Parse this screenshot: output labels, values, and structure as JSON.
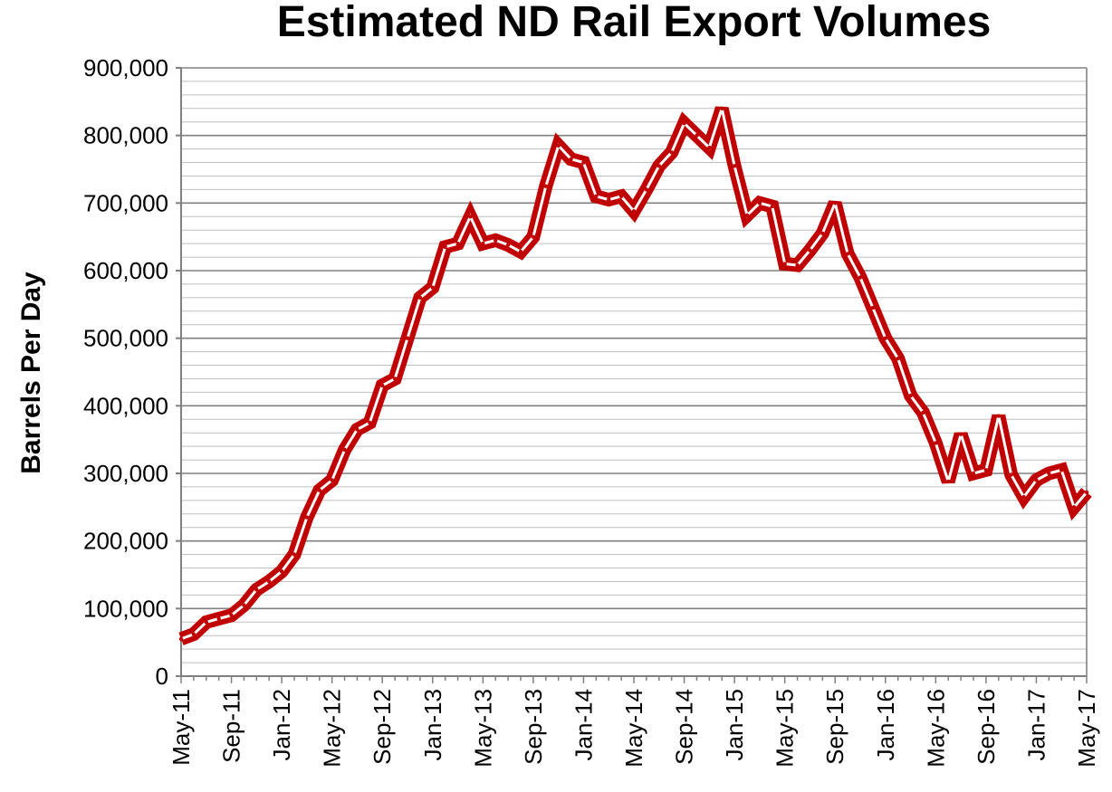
{
  "chart_data": {
    "type": "line",
    "title": "Estimated ND Rail Export Volumes",
    "xlabel": "",
    "ylabel": "Barrels Per Day",
    "ylim": [
      0,
      900000
    ],
    "ytick_values": [
      0,
      100000,
      200000,
      300000,
      400000,
      500000,
      600000,
      700000,
      800000,
      900000
    ],
    "ytick_labels": [
      "0",
      "100,000",
      "200,000",
      "300,000",
      "400,000",
      "500,000",
      "600,000",
      "700,000",
      "800,000",
      "900,000"
    ],
    "xtick_labels": [
      "May-11",
      "Sep-11",
      "Jan-12",
      "May-12",
      "Sep-12",
      "Jan-13",
      "May-13",
      "Sep-13",
      "Jan-14",
      "May-14",
      "Sep-14",
      "Jan-15",
      "May-15",
      "Sep-15",
      "Jan-16",
      "May-16",
      "Sep-16",
      "Jan-17",
      "May-17"
    ],
    "grid": true,
    "line_color": "#C00000",
    "series": [
      {
        "x": [
          "May-11",
          "Jun-11",
          "Jul-11",
          "Aug-11",
          "Sep-11",
          "Oct-11",
          "Nov-11",
          "Dec-11",
          "Jan-12",
          "Feb-12",
          "Mar-12",
          "Apr-12",
          "May-12",
          "Jun-12",
          "Jul-12",
          "Aug-12",
          "Sep-12",
          "Oct-12",
          "Nov-12",
          "Dec-12",
          "Jan-13",
          "Feb-13",
          "Mar-13",
          "Apr-13",
          "May-13",
          "Jun-13",
          "Jul-13",
          "Aug-13",
          "Sep-13",
          "Oct-13",
          "Nov-13",
          "Dec-13",
          "Jan-14",
          "Feb-14",
          "Mar-14",
          "Apr-14",
          "May-14",
          "Jun-14",
          "Jul-14",
          "Aug-14",
          "Sep-14",
          "Oct-14",
          "Nov-14",
          "Dec-14",
          "Jan-15",
          "Feb-15",
          "Mar-15",
          "Apr-15",
          "May-15",
          "Jun-15",
          "Jul-15",
          "Aug-15",
          "Sep-15",
          "Oct-15",
          "Nov-15",
          "Dec-15",
          "Jan-16",
          "Feb-16",
          "Mar-16",
          "Apr-16",
          "May-16",
          "Jun-16",
          "Jul-16",
          "Aug-16",
          "Sep-16",
          "Oct-16",
          "Nov-16",
          "Dec-16",
          "Jan-17",
          "Feb-17",
          "Mar-17",
          "Apr-17",
          "May-17"
        ],
        "values": [
          55000,
          62000,
          80000,
          85000,
          90000,
          105000,
          128000,
          140000,
          155000,
          180000,
          235000,
          275000,
          290000,
          335000,
          365000,
          375000,
          430000,
          440000,
          500000,
          560000,
          575000,
          635000,
          640000,
          680000,
          640000,
          645000,
          638000,
          628000,
          650000,
          725000,
          785000,
          765000,
          760000,
          710000,
          705000,
          710000,
          688000,
          720000,
          755000,
          775000,
          818000,
          800000,
          782000,
          840000,
          755000,
          682000,
          700000,
          695000,
          610000,
          608000,
          630000,
          655000,
          700000,
          625000,
          590000,
          545000,
          500000,
          470000,
          415000,
          390000,
          345000,
          288000,
          358000,
          300000,
          305000,
          385000,
          298000,
          265000,
          290000,
          300000,
          305000,
          250000,
          272000
        ]
      }
    ]
  }
}
